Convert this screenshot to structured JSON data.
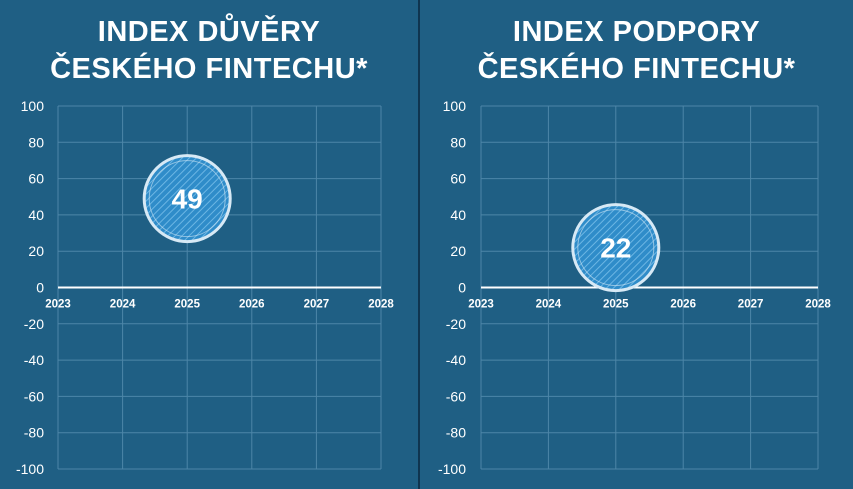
{
  "colors": {
    "background": "#1f5f84",
    "divider": "#0f3550",
    "grid": "#4d86a8",
    "zero_line": "#ffffff",
    "text": "#ffffff",
    "bubble_fill": "#2f8cc9",
    "bubble_stripe": "#6cb6e4",
    "bubble_ring": "#d7e9f5"
  },
  "chart_data": [
    {
      "type": "scatter",
      "title_lines": [
        "INDEX DŮVĚRY",
        "ČESKÉHO FINTECHU*"
      ],
      "xlabel": "",
      "ylabel": "",
      "xlim": [
        2023,
        2028
      ],
      "ylim": [
        -100,
        100
      ],
      "x_ticks": [
        "2023",
        "2024",
        "2025",
        "2026",
        "2027",
        "2028"
      ],
      "y_ticks": [
        "100",
        "80",
        "60",
        "40",
        "20",
        "0",
        "-20",
        "-40",
        "-60",
        "-80",
        "-100"
      ],
      "grid": true,
      "points": [
        {
          "x": 2025,
          "y": 49,
          "label": "49"
        }
      ]
    },
    {
      "type": "scatter",
      "title_lines": [
        "INDEX PODPORY",
        "ČESKÉHO FINTECHU*"
      ],
      "xlabel": "",
      "ylabel": "",
      "xlim": [
        2023,
        2028
      ],
      "ylim": [
        -100,
        100
      ],
      "x_ticks": [
        "2023",
        "2024",
        "2025",
        "2026",
        "2027",
        "2028"
      ],
      "y_ticks": [
        "100",
        "80",
        "60",
        "40",
        "20",
        "0",
        "-20",
        "-40",
        "-60",
        "-80",
        "-100"
      ],
      "grid": true,
      "points": [
        {
          "x": 2025,
          "y": 22,
          "label": "22"
        }
      ]
    }
  ]
}
